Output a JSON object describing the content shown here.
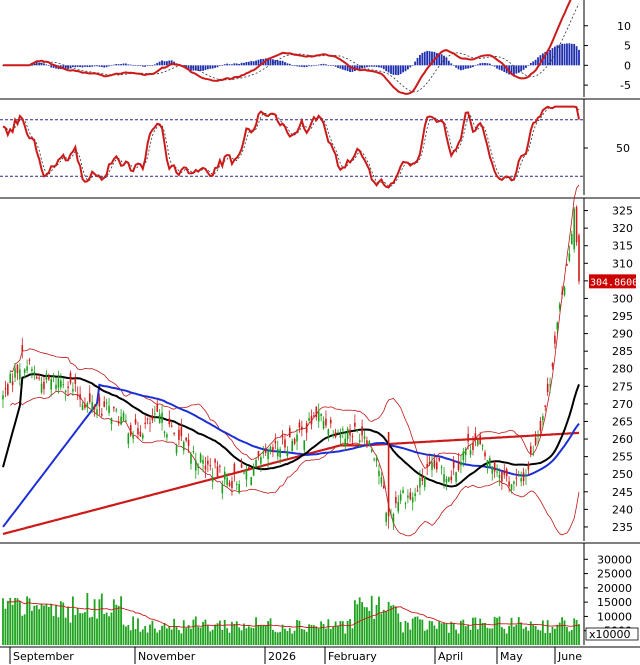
{
  "chart_data": {
    "type": "stock-multi-panel",
    "x_labels": [
      "September",
      "November",
      "2026",
      "February",
      "April",
      "May",
      "June"
    ],
    "panels": [
      {
        "name": "macd",
        "ylim": [
          -8,
          16
        ],
        "ticks": [
          "10",
          "5",
          "0",
          "-5"
        ],
        "tick_values": [
          10,
          5,
          0,
          -5
        ]
      },
      {
        "name": "stochastic",
        "ylim": [
          0,
          100
        ],
        "ticks": [
          "50"
        ],
        "tick_values": [
          50
        ],
        "reference_lines": [
          80,
          20
        ]
      },
      {
        "name": "price",
        "ylim": [
          231,
          328
        ],
        "ticks": [
          "325",
          "320",
          "315",
          "310",
          "305",
          "300",
          "295",
          "290",
          "285",
          "280",
          "275",
          "270",
          "265",
          "260",
          "255",
          "250",
          "245",
          "240",
          "235"
        ],
        "tick_values": [
          325,
          320,
          315,
          310,
          305,
          300,
          295,
          290,
          285,
          280,
          275,
          270,
          265,
          260,
          255,
          250,
          245,
          240,
          235
        ],
        "last_price_label": "304.8600",
        "last_price": 304.86
      },
      {
        "name": "volume",
        "ylim": [
          0,
          35000
        ],
        "ticks": [
          "30000",
          "25000",
          "20000",
          "15000",
          "10000",
          "5000"
        ],
        "tick_values": [
          30000,
          25000,
          20000,
          15000,
          10000,
          5000
        ],
        "unit_label": "x10000"
      }
    ]
  },
  "colors": {
    "up": "#1a9e1a",
    "down": "#d11a1a",
    "volume": "#1fa31f",
    "ma_black": "#000000",
    "ma_blue": "#1c2fd6",
    "ma_red": "#cc1a1a",
    "bollinger": "#c01818",
    "macd_hist": "#1f2fb0",
    "reference": "#2a2a8a",
    "price_box": "#cc0000"
  }
}
